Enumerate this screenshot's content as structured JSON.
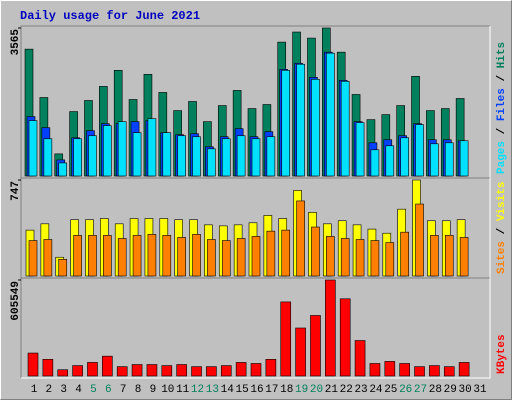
{
  "chart_data": [
    {
      "type": "bar",
      "title": "Daily usage for June 2021",
      "ylim": [
        0,
        3565
      ],
      "yticks": [
        3565
      ],
      "legend_separator": " / ",
      "series": [
        {
          "name": "Hits",
          "color": "#00805c",
          "values": [
            3056,
            1891,
            533,
            1552,
            1819,
            2158,
            2546,
            1843,
            2449,
            2013,
            1576,
            1795,
            1310,
            1697,
            2061,
            1625,
            1722,
            3225,
            3468,
            3322,
            3565,
            2983,
            1964,
            1358,
            1479,
            1697,
            2401,
            1576,
            1625,
            1867,
            null
          ]
        },
        {
          "name": "Files",
          "color": "#0040ff",
          "values": [
            1431,
            1164,
            388,
            921,
            1091,
            1261,
            1261,
            1310,
            1334,
            1043,
            994,
            1018,
            703,
            946,
            1140,
            946,
            1067,
            2570,
            2716,
            2377,
            2983,
            2304,
            1310,
            800,
            873,
            970,
            1261,
            873,
            873,
            849,
            null
          ]
        },
        {
          "name": "Pages",
          "color": "#00e0ff",
          "values": [
            1334,
            897,
            315,
            897,
            970,
            1213,
            1310,
            1043,
            1382,
            1043,
            970,
            946,
            655,
            897,
            970,
            897,
            946,
            2546,
            2692,
            2328,
            2959,
            2280,
            1285,
            631,
            728,
            921,
            1237,
            776,
            800,
            849,
            null
          ]
        }
      ]
    },
    {
      "type": "bar",
      "ylim": [
        0,
        747
      ],
      "yticks": [
        747
      ],
      "legend_separator": " / ",
      "series": [
        {
          "name": "Visits",
          "color": "#ffff00",
          "values": [
            357,
            406,
            146,
            438,
            438,
            447,
            406,
            447,
            447,
            447,
            438,
            438,
            398,
            390,
            398,
            414,
            471,
            447,
            666,
            495,
            406,
            430,
            398,
            365,
            333,
            520,
            747,
            430,
            430,
            438,
            null
          ]
        },
        {
          "name": "Sites",
          "color": "#ff8000",
          "values": [
            276,
            284,
            130,
            316,
            316,
            316,
            292,
            316,
            324,
            316,
            300,
            324,
            284,
            276,
            292,
            308,
            349,
            357,
            584,
            381,
            308,
            292,
            284,
            276,
            260,
            341,
            560,
            316,
            316,
            300,
            null
          ]
        }
      ]
    },
    {
      "type": "bar",
      "ylim": [
        0,
        605549
      ],
      "yticks": [
        605549
      ],
      "categories": [
        "1",
        "2",
        "3",
        "4",
        "5",
        "6",
        "7",
        "8",
        "9",
        "10",
        "11",
        "12",
        "13",
        "14",
        "15",
        "16",
        "17",
        "18",
        "19",
        "20",
        "21",
        "22",
        "23",
        "24",
        "25",
        "26",
        "27",
        "28",
        "29",
        "30",
        "31"
      ],
      "category_colors": [
        "#000",
        "#000",
        "#000",
        "#000",
        "#00805c",
        "#00805c",
        "#000",
        "#000",
        "#000",
        "#000",
        "#000",
        "#00805c",
        "#00805c",
        "#000",
        "#000",
        "#000",
        "#000",
        "#000",
        "#00805c",
        "#00805c",
        "#000",
        "#000",
        "#000",
        "#000",
        "#000",
        "#00805c",
        "#00805c",
        "#000",
        "#000",
        "#000",
        "#000"
      ],
      "series": [
        {
          "name": "KBytes",
          "color": "#ff0000",
          "values": [
            144800,
            105300,
            39500,
            65800,
            85600,
            125100,
            59200,
            72400,
            72400,
            65800,
            72400,
            59200,
            59200,
            65800,
            85600,
            79000,
            105300,
            467300,
            302800,
            381800,
            605549,
            487100,
            223800,
            79000,
            92100,
            79000,
            59200,
            65800,
            59200,
            85600,
            null
          ]
        }
      ]
    }
  ]
}
